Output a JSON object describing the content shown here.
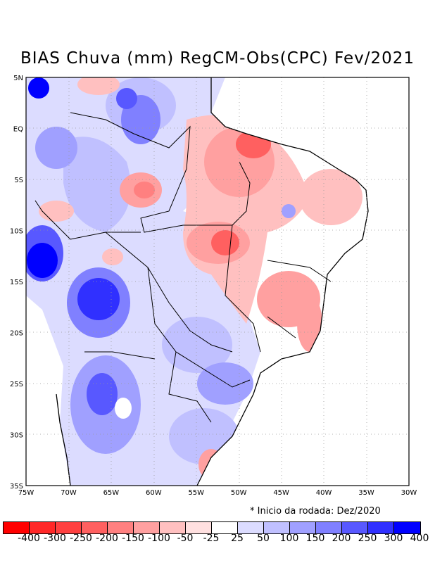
{
  "title": "BIAS Chuva (mm) RegCM-Obs(CPC) Fev/2021",
  "note": "* Inicio da rodada: Dez/2020",
  "lat_labels": [
    "5N",
    "EQ",
    "5S",
    "10S",
    "15S",
    "20S",
    "25S",
    "30S",
    "35S"
  ],
  "lon_labels": [
    "75W",
    "70W",
    "65W",
    "60W",
    "55W",
    "50W",
    "45W",
    "40W",
    "35W",
    "30W"
  ],
  "colorbar": {
    "labels": [
      "-400",
      "-300",
      "-250",
      "-200",
      "-150",
      "-100",
      "-50",
      "-25",
      "25",
      "50",
      "100",
      "150",
      "200",
      "250",
      "300",
      "400"
    ],
    "colors": [
      "#ff0000",
      "#ff2828",
      "#ff4040",
      "#ff6060",
      "#ff8080",
      "#ffa0a0",
      "#ffc0c0",
      "#ffe0e0",
      "#ffffff",
      "#dcdcff",
      "#c0c0ff",
      "#a0a0ff",
      "#8080ff",
      "#5858ff",
      "#3030ff",
      "#0000ff"
    ]
  }
}
